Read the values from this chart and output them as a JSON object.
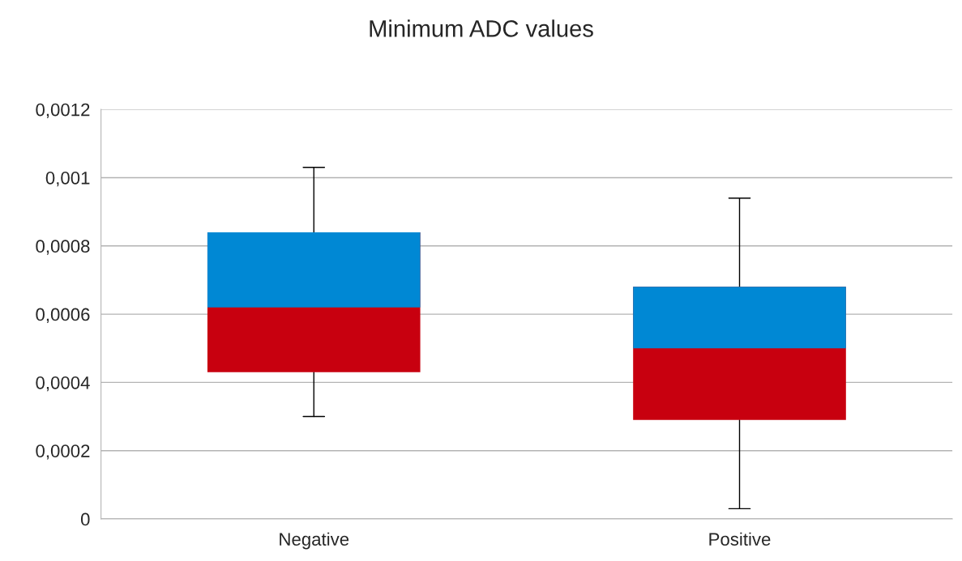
{
  "chart_data": {
    "type": "box",
    "title": "Minimum ADC values",
    "categories": [
      "Negative",
      "Positive"
    ],
    "boxes": [
      {
        "low": 0.0003,
        "q1": 0.00043,
        "median": 0.00062,
        "q3": 0.00084,
        "high": 0.00103
      },
      {
        "low": 3e-05,
        "q1": 0.00029,
        "median": 0.0005,
        "q3": 0.00068,
        "high": 0.00094
      }
    ],
    "colors": [
      "#c8000f",
      "#c8000f"
    ],
    "ylim": [
      0,
      0.0012
    ],
    "yticks": [
      0,
      {
        "value": 0.0002,
        "label": "0,0002"
      },
      {
        "value": 0.0004,
        "label": "0,0004"
      },
      {
        "value": 0.0006,
        "label": "0,0006"
      },
      {
        "value": 0.0008,
        "label": "0,0008"
      },
      {
        "value": 0.001,
        "label": "0,001"
      },
      {
        "value": 0.0012,
        "label": "0,0012"
      }
    ],
    "grid": "y",
    "legend": false
  }
}
